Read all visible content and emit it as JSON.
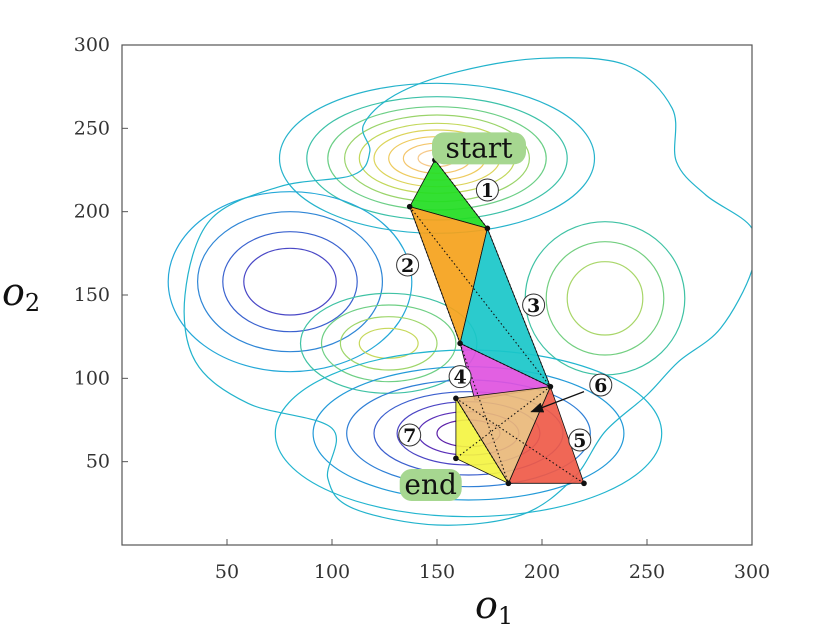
{
  "colors": {
    "axis": "#555555",
    "gridless": true
  },
  "chart_data": {
    "type": "contour",
    "title": "",
    "grid": false,
    "xlabel": {
      "base": "o",
      "sub": "1"
    },
    "ylabel": {
      "base": "o",
      "sub": "2"
    },
    "xlim": [
      0,
      300
    ],
    "ylim": [
      0,
      300
    ],
    "xticks": [
      50,
      100,
      150,
      200,
      250,
      300
    ],
    "yticks": [
      50,
      100,
      150,
      200,
      250,
      300
    ],
    "contours": [
      {
        "center": [
          150,
          232
        ],
        "rx": [
          75,
          62,
          52,
          44,
          37,
          30,
          23,
          16,
          9
        ],
        "ry": [
          45,
          37,
          31,
          26,
          21,
          17,
          13,
          9,
          5
        ],
        "colors": [
          "#26b3cc",
          "#3cc1a8",
          "#6ccf86",
          "#9ad46a",
          "#c2d85a",
          "#dcd45a",
          "#eecb5f",
          "#f4c66c",
          "#f6c98a"
        ]
      },
      {
        "center": [
          80,
          158
        ],
        "rx": [
          58,
          44,
          32,
          22
        ],
        "ry": [
          54,
          42,
          30,
          20
        ],
        "colors": [
          "#24a8d8",
          "#2f86d6",
          "#3a62cf",
          "#4a48c6"
        ]
      },
      {
        "center": [
          127,
          121
        ],
        "rx": [
          42,
          32,
          23,
          14
        ],
        "ry": [
          30,
          23,
          16,
          9
        ],
        "colors": [
          "#3fc2a4",
          "#6ecf84",
          "#9ed66a",
          "#c6d85a"
        ]
      },
      {
        "center": [
          230,
          148
        ],
        "rx": [
          38,
          28,
          18
        ],
        "ry": [
          46,
          34,
          22
        ],
        "colors": [
          "#3fc2a4",
          "#73cf80",
          "#a8d668"
        ]
      },
      {
        "center": [
          165,
          67
        ],
        "rx": [
          92,
          74,
          58,
          45,
          34,
          24,
          15
        ],
        "ry": [
          50,
          40,
          32,
          25,
          19,
          13,
          8
        ],
        "colors": [
          "#22b5cf",
          "#239ad8",
          "#2f7fd6",
          "#3c5fce",
          "#4b45c4",
          "#5a2fb8",
          "#5c20a8"
        ]
      }
    ],
    "outer_contour": [
      [
        115,
        252
      ],
      [
        130,
        270
      ],
      [
        160,
        284
      ],
      [
        200,
        292
      ],
      [
        240,
        288
      ],
      [
        262,
        262
      ],
      [
        264,
        230
      ],
      [
        278,
        210
      ],
      [
        300,
        190
      ],
      [
        300,
        165
      ],
      [
        285,
        130
      ],
      [
        265,
        110
      ],
      [
        250,
        90
      ],
      [
        230,
        68
      ],
      [
        215,
        40
      ],
      [
        190,
        18
      ],
      [
        150,
        12
      ],
      [
        110,
        22
      ],
      [
        98,
        40
      ],
      [
        100,
        70
      ],
      [
        60,
        85
      ],
      [
        35,
        110
      ],
      [
        30,
        150
      ],
      [
        42,
        195
      ],
      [
        75,
        215
      ],
      [
        110,
        222
      ],
      [
        118,
        236
      ]
    ],
    "triangles": [
      {
        "id": 1,
        "vertices": [
          [
            149,
            231
          ],
          [
            137,
            203
          ],
          [
            174,
            190
          ]
        ],
        "color": "#22dd22"
      },
      {
        "id": 2,
        "vertices": [
          [
            137,
            203
          ],
          [
            174,
            190
          ],
          [
            161,
            121
          ]
        ],
        "color": "#f5a21b"
      },
      {
        "id": 3,
        "vertices": [
          [
            174,
            190
          ],
          [
            161,
            121
          ],
          [
            204,
            95
          ]
        ],
        "color": "#19c7c9"
      },
      {
        "id": 4,
        "vertices": [
          [
            161,
            121
          ],
          [
            204,
            95
          ],
          [
            168,
            87
          ]
        ],
        "color": "#e052e0"
      },
      {
        "id": 5,
        "vertices": [
          [
            204,
            95
          ],
          [
            184,
            37
          ],
          [
            220,
            37
          ]
        ],
        "color": "#ef5a48"
      },
      {
        "id": 6,
        "vertices": [
          [
            159,
            88
          ],
          [
            204,
            95
          ],
          [
            184,
            37
          ]
        ],
        "color": "#e9b87a"
      },
      {
        "id": 7,
        "vertices": [
          [
            159,
            88
          ],
          [
            159,
            52
          ],
          [
            184,
            37
          ]
        ],
        "color": "#f4f442"
      }
    ],
    "diagonals": [
      [
        [
          149,
          231
        ],
        [
          174,
          190
        ]
      ],
      [
        [
          137,
          203
        ],
        [
          161,
          121
        ]
      ],
      [
        [
          174,
          190
        ],
        [
          204,
          95
        ]
      ],
      [
        [
          161,
          121
        ],
        [
          204,
          95
        ]
      ],
      [
        [
          159,
          88
        ],
        [
          220,
          37
        ]
      ],
      [
        [
          204,
          95
        ],
        [
          159,
          52
        ]
      ],
      [
        [
          159,
          88
        ],
        [
          184,
          37
        ]
      ],
      [
        [
          161,
          121
        ],
        [
          184,
          37
        ]
      ],
      [
        [
          137,
          203
        ],
        [
          204,
          95
        ]
      ]
    ],
    "vertices": [
      [
        149,
        231
      ],
      [
        137,
        203
      ],
      [
        174,
        190
      ],
      [
        161,
        121
      ],
      [
        204,
        95
      ],
      [
        159,
        88
      ],
      [
        159,
        52
      ],
      [
        184,
        37
      ],
      [
        220,
        37
      ]
    ],
    "annotations": [
      {
        "text": "start",
        "x": 170,
        "y": 238,
        "style": "tag",
        "bg": "#a6d790"
      },
      {
        "text": "end",
        "x": 147,
        "y": 36,
        "style": "tag",
        "bg": "#a6d790"
      },
      {
        "text": "1",
        "x": 174,
        "y": 213,
        "style": "num"
      },
      {
        "text": "2",
        "x": 136,
        "y": 168,
        "style": "num"
      },
      {
        "text": "3",
        "x": 196,
        "y": 144,
        "style": "num"
      },
      {
        "text": "4",
        "x": 161,
        "y": 101,
        "style": "num"
      },
      {
        "text": "6",
        "x": 228,
        "y": 96,
        "style": "num"
      },
      {
        "text": "5",
        "x": 218,
        "y": 63,
        "style": "num"
      },
      {
        "text": "7",
        "x": 137,
        "y": 66,
        "style": "num"
      }
    ],
    "arrow": {
      "from": [
        220,
        92
      ],
      "to": [
        195,
        80
      ]
    }
  }
}
